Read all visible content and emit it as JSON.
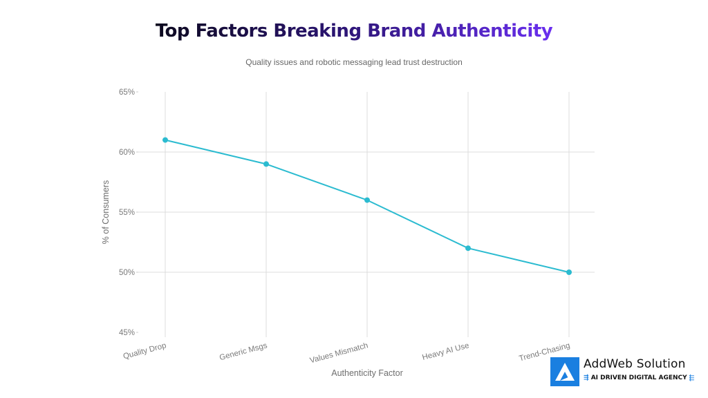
{
  "header": {
    "title": "Top Factors Breaking Brand Authenticity",
    "subtitle": "Quality issues and robotic messaging lead trust destruction"
  },
  "chart_data": {
    "type": "line",
    "title": "Top Factors Breaking Brand Authenticity",
    "subtitle": "Quality issues and robotic messaging lead trust destruction",
    "xlabel": "Authenticity Factor",
    "ylabel": "% of Consumers",
    "categories": [
      "Quality Drop",
      "Generic Msgs",
      "Values Mismatch",
      "Heavy AI Use",
      "Trend-Chasing"
    ],
    "series": [
      {
        "name": "% of Consumers",
        "values": [
          61,
          59,
          56,
          52,
          50
        ],
        "color": "#2bbbd0"
      }
    ],
    "ylim": [
      45,
      65
    ],
    "yticks": [
      45,
      50,
      55,
      60,
      65
    ],
    "ytick_labels": [
      "45%",
      "50%",
      "55%",
      "60%",
      "65%"
    ],
    "grid": true,
    "legend": "none"
  },
  "logo": {
    "name": "AddWeb Solution",
    "tagline": "AI DRIVEN DIGITAL AGENCY",
    "left_arrows": "⇶",
    "right_arrows": "⬱",
    "brand_color": "#1a7fe0"
  }
}
